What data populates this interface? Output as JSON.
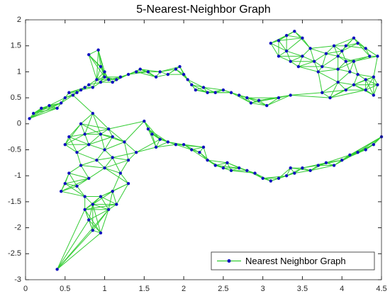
{
  "chart_data": {
    "type": "graph",
    "title": "5-Nearest-Neighbor Graph",
    "x": [
      0.05,
      0.1,
      0.2,
      0.3,
      0.4,
      0.45,
      0.5,
      0.55,
      0.6,
      0.65,
      0.7,
      0.75,
      0.8,
      0.85,
      0.9,
      0.95,
      1.0,
      1.05,
      1.1,
      1.15,
      1.2,
      0.8,
      0.92,
      0.95,
      1.0,
      1.3,
      1.4,
      1.45,
      1.55,
      1.65,
      1.7,
      1.8,
      1.9,
      1.95,
      2.0,
      2.05,
      2.1,
      2.15,
      2.25,
      2.3,
      2.4,
      2.5,
      2.6,
      2.7,
      2.8,
      2.85,
      2.95,
      3.05,
      3.2,
      3.35,
      3.1,
      3.2,
      3.3,
      3.4,
      3.5,
      3.3,
      3.2,
      3.35,
      3.45,
      3.5,
      3.6,
      3.65,
      3.7,
      3.75,
      3.8,
      3.9,
      3.95,
      4.0,
      4.05,
      4.15,
      4.2,
      4.3,
      4.35,
      4.45,
      4.05,
      4.1,
      4.2,
      4.3,
      4.4,
      4.45,
      4.4,
      4.3,
      4.15,
      4.05,
      3.95,
      3.85,
      3.75,
      3.95,
      4.15,
      0.7,
      0.85,
      0.75,
      0.55,
      0.5,
      0.65,
      0.8,
      0.95,
      1.05,
      1.1,
      1.25,
      1.0,
      0.9,
      0.7,
      0.55,
      0.5,
      0.45,
      0.65,
      0.8,
      1.0,
      1.2,
      1.3,
      1.1,
      1.4,
      1.3,
      1.1,
      0.95,
      0.75,
      0.85,
      1.05,
      1.15,
      0.8,
      0.85,
      0.95,
      0.75,
      0.4,
      1.5,
      1.55,
      1.6,
      1.7,
      1.8,
      1.9,
      2.0,
      2.1,
      2.2,
      2.3,
      2.4,
      2.5,
      2.6,
      2.7,
      2.8,
      2.9,
      3.0,
      3.1,
      3.2,
      3.3,
      3.4,
      3.5,
      3.6,
      3.7,
      3.8,
      3.9,
      4.0,
      4.1,
      4.2,
      4.3,
      4.4,
      4.5,
      1.65,
      2.25,
      2.55,
      3.35
    ],
    "series": [
      {
        "name": "Nearest Neighbor Graph",
        "color": "#33cc33",
        "marker_color": "#1010c0",
        "values": [
          0.1,
          0.2,
          0.3,
          0.35,
          0.3,
          0.4,
          0.5,
          0.6,
          0.55,
          0.6,
          0.65,
          0.7,
          0.75,
          0.7,
          0.85,
          0.8,
          0.9,
          0.85,
          0.8,
          0.85,
          0.9,
          1.33,
          1.42,
          1.1,
          1.0,
          0.95,
          1.0,
          1.05,
          1.0,
          0.9,
          1.0,
          0.95,
          1.05,
          1.1,
          0.95,
          0.85,
          0.75,
          0.65,
          0.7,
          0.6,
          0.6,
          0.65,
          0.6,
          0.55,
          0.5,
          0.4,
          0.45,
          0.35,
          0.5,
          0.55,
          1.55,
          1.6,
          1.7,
          1.78,
          1.65,
          1.4,
          1.3,
          1.2,
          1.1,
          1.3,
          1.45,
          1.2,
          1.0,
          1.1,
          1.35,
          1.5,
          1.3,
          1.4,
          1.5,
          1.65,
          1.55,
          1.45,
          1.3,
          1.3,
          1.2,
          1.0,
          0.95,
          0.85,
          0.9,
          0.75,
          0.55,
          0.65,
          0.75,
          0.65,
          0.8,
          0.5,
          0.6,
          1.05,
          1.2,
          0.0,
          0.2,
          -0.2,
          -0.25,
          -0.4,
          -0.55,
          -0.4,
          -0.2,
          -0.1,
          -0.25,
          -0.35,
          -0.5,
          -0.7,
          -0.8,
          -0.95,
          -1.15,
          -1.3,
          -1.2,
          -1.05,
          -0.85,
          -0.95,
          -0.7,
          -0.65,
          -0.55,
          -1.15,
          -1.3,
          -1.4,
          -1.4,
          -1.55,
          -1.65,
          -1.55,
          -1.85,
          -2.05,
          -2.1,
          -1.65,
          -2.8,
          0.05,
          -0.1,
          -0.2,
          -0.3,
          -0.35,
          -0.4,
          -0.4,
          -0.5,
          -0.55,
          -0.7,
          -0.8,
          -0.85,
          -0.9,
          -0.85,
          -0.9,
          -0.95,
          -1.05,
          -1.1,
          -1.05,
          -1.0,
          -0.95,
          -0.85,
          -0.9,
          -0.8,
          -0.75,
          -0.8,
          -0.7,
          -0.6,
          -0.55,
          -0.5,
          -0.4,
          -0.25,
          -0.45,
          -0.45,
          -0.75,
          -0.85
        ]
      }
    ],
    "xlim": [
      0,
      4.5
    ],
    "xticks": [
      0,
      0.5,
      1,
      1.5,
      2,
      2.5,
      3,
      3.5,
      4,
      4.5
    ],
    "ylim": [
      -3,
      2
    ],
    "yticks": [
      2,
      1.5,
      1,
      0.5,
      0,
      -0.5,
      -1,
      -1.5,
      -2,
      -2.5,
      -3
    ],
    "legend": "lower right"
  }
}
